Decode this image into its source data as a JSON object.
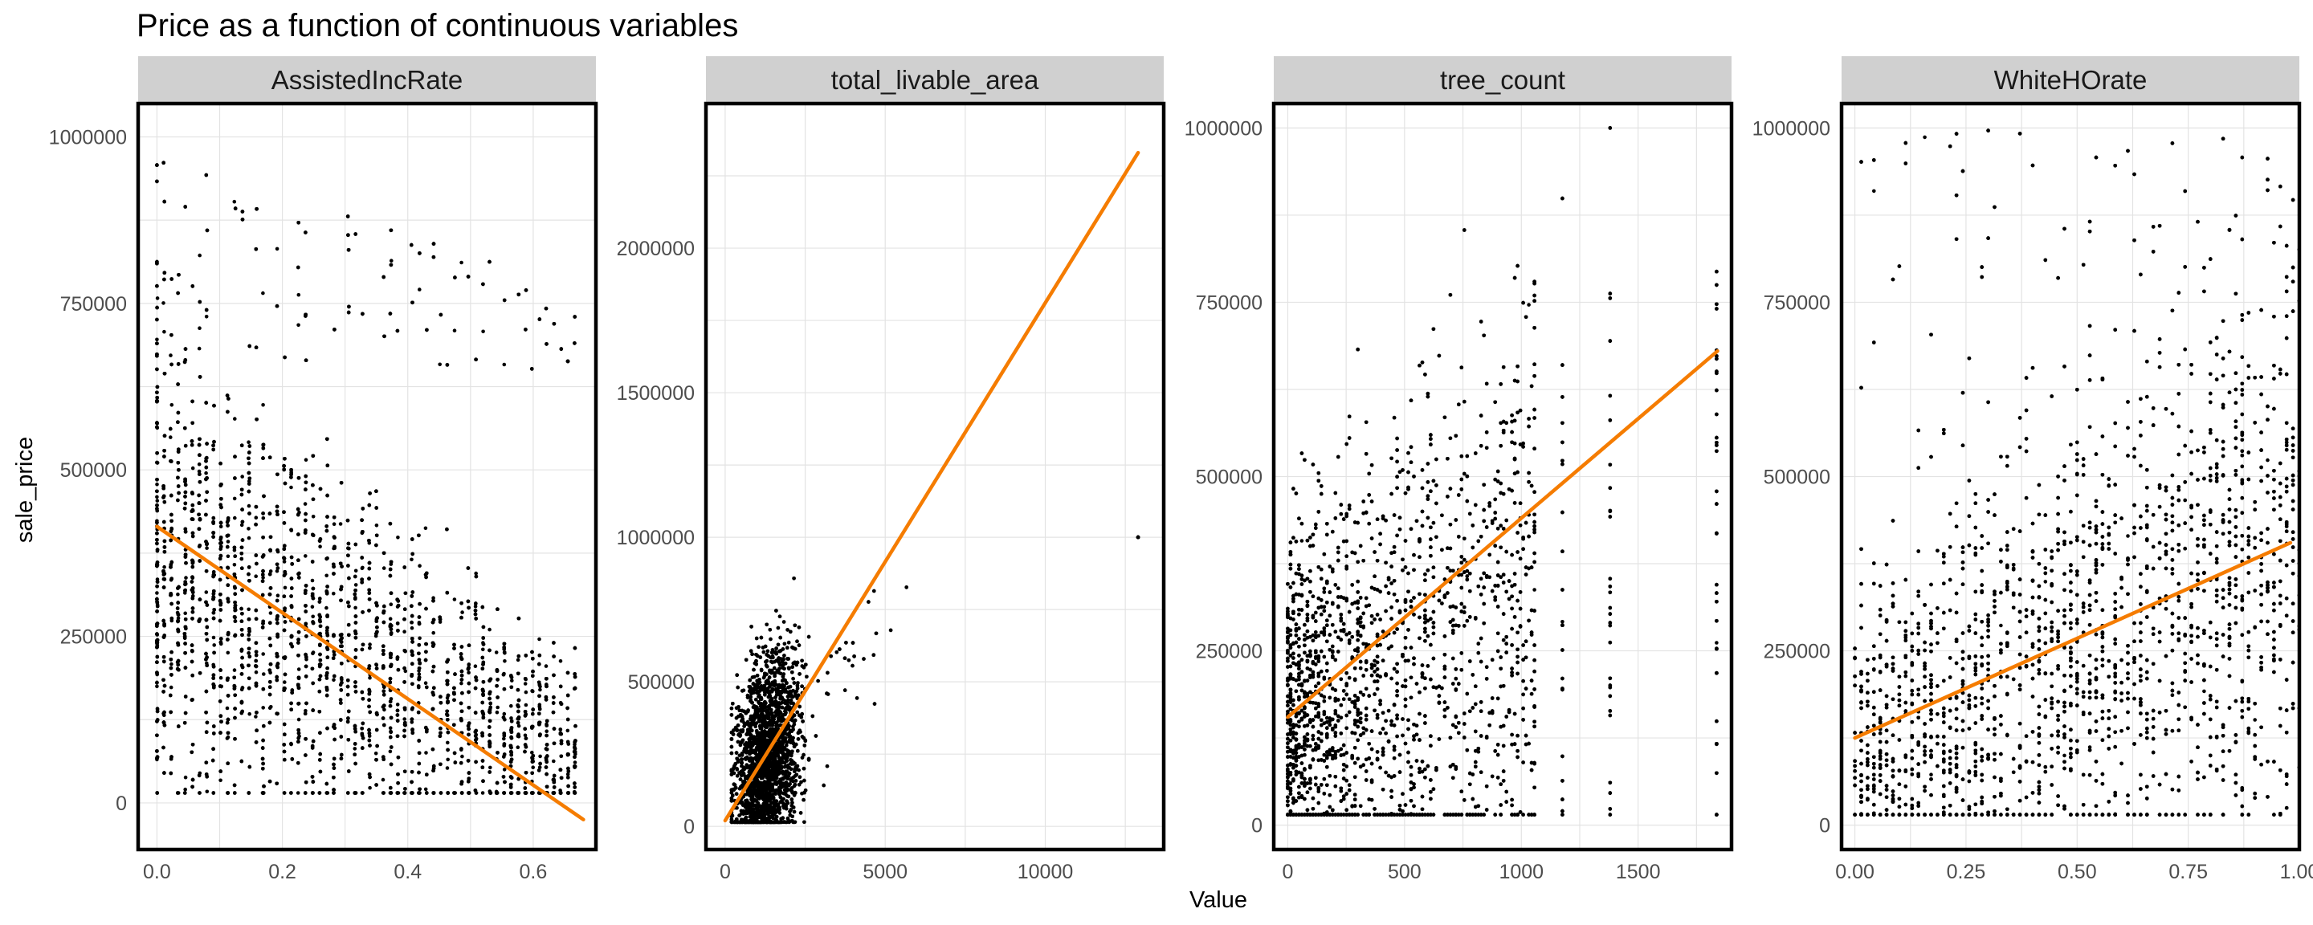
{
  "figure": {
    "title": "Price as a function of continuous variables",
    "xlabel": "Value",
    "ylabel": "sale_price"
  },
  "colors": {
    "points": "#000000",
    "fit_line": "#f57c00",
    "strip_bg": "#d0d0d0",
    "grid": "#e3e3e3",
    "panel_border": "#000000"
  },
  "chart_data": [
    {
      "type": "scatter",
      "panel": "AssistedIncRate",
      "xlim": [
        -0.03,
        0.7
      ],
      "ylim": [
        -70000,
        1050000
      ],
      "x_ticks": [
        0.0,
        0.2,
        0.4,
        0.6
      ],
      "x_tick_labels": [
        "0.0",
        "0.2",
        "0.4",
        "0.6"
      ],
      "y_ticks": [
        0,
        250000,
        500000,
        750000,
        1000000
      ],
      "y_tick_labels": [
        "0",
        "250000",
        "500000",
        "750000",
        "1000000"
      ],
      "grid": true,
      "fit_line": {
        "x": [
          0.0,
          0.68
        ],
        "y": [
          415000,
          -25000
        ]
      },
      "points_summary": {
        "x_range": [
          0.0,
          0.68
        ],
        "y_range": [
          15000,
          1000000
        ],
        "trend": "negative",
        "note": "dense vertical bands at discrete x values"
      }
    },
    {
      "type": "scatter",
      "panel": "total_livable_area",
      "xlim": [
        -600,
        13700
      ],
      "ylim": [
        -80000,
        2500000
      ],
      "x_ticks": [
        0,
        5000,
        10000
      ],
      "x_tick_labels": [
        "0",
        "5000",
        "10000"
      ],
      "y_ticks": [
        0,
        500000,
        1000000,
        1500000,
        2000000
      ],
      "y_tick_labels": [
        "0",
        "500000",
        "1000000",
        "1500000",
        "2000000"
      ],
      "grid": true,
      "fit_line": {
        "x": [
          0,
          12900
        ],
        "y": [
          20000,
          2330000
        ]
      },
      "points_summary": {
        "x_range": [
          0,
          13000
        ],
        "y_range": [
          15000,
          1000000
        ],
        "trend": "positive",
        "note": "dense cluster between 0 and 3500"
      }
    },
    {
      "type": "scatter",
      "panel": "tree_count",
      "xlim": [
        -60,
        1900
      ],
      "ylim": [
        -35000,
        1035000
      ],
      "x_ticks": [
        0,
        500,
        1000,
        1500
      ],
      "x_tick_labels": [
        "0",
        "500",
        "1000",
        "1500"
      ],
      "y_ticks": [
        0,
        250000,
        500000,
        750000,
        1000000
      ],
      "y_tick_labels": [
        "0",
        "250000",
        "500000",
        "750000",
        "1000000"
      ],
      "grid": true,
      "fit_line": {
        "x": [
          0,
          1840
        ],
        "y": [
          155000,
          680000
        ]
      },
      "points_summary": {
        "x_range": [
          0,
          1840
        ],
        "y_range": [
          15000,
          1000000
        ],
        "trend": "positive",
        "note": "vertical bands at discrete counts"
      }
    },
    {
      "type": "scatter",
      "panel": "WhiteHOrate",
      "xlim": [
        -0.03,
        1.0
      ],
      "ylim": [
        -35000,
        1035000
      ],
      "x_ticks": [
        0.0,
        0.25,
        0.5,
        0.75,
        1.0
      ],
      "x_tick_labels": [
        "0.00",
        "0.25",
        "0.50",
        "0.75",
        "1.00"
      ],
      "y_ticks": [
        0,
        250000,
        500000,
        750000,
        1000000
      ],
      "y_tick_labels": [
        "0",
        "250000",
        "500000",
        "750000",
        "1000000"
      ],
      "grid": true,
      "fit_line": {
        "x": [
          0.0,
          0.98
        ],
        "y": [
          125000,
          405000
        ]
      },
      "points_summary": {
        "x_range": [
          0.0,
          1.0
        ],
        "y_range": [
          15000,
          1000000
        ],
        "trend": "positive",
        "note": "vertical bands across the full range"
      }
    }
  ]
}
